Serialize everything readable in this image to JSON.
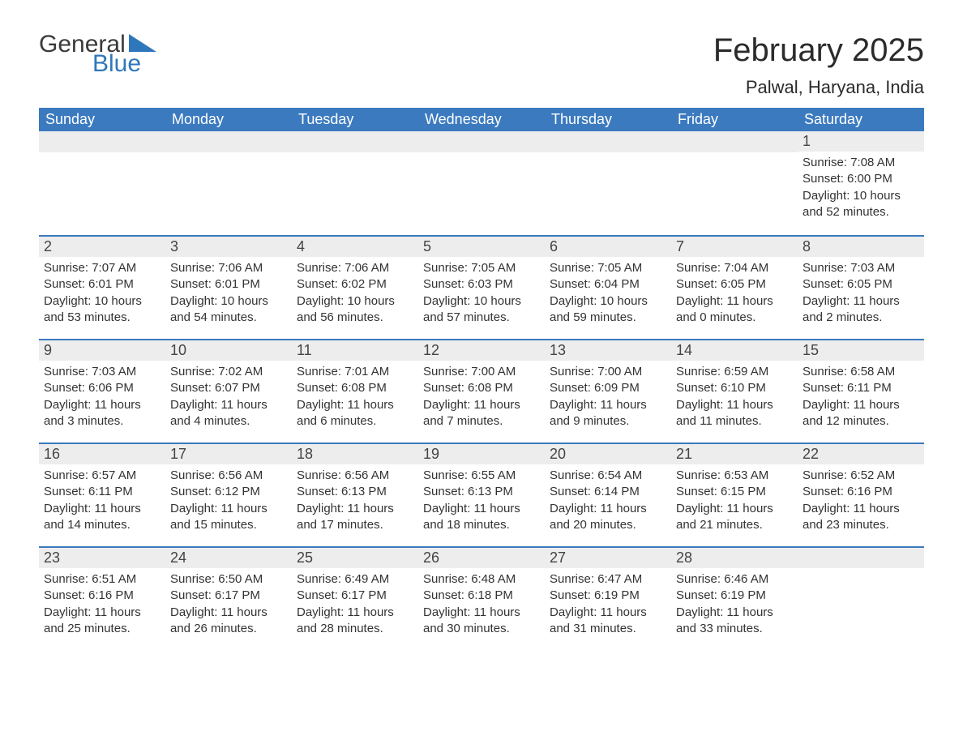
{
  "brand": {
    "word1": "General",
    "word2": "Blue",
    "color_text": "#3a3a3a",
    "color_blue": "#2f77bb"
  },
  "title": "February 2025",
  "location": "Palwal, Haryana, India",
  "colors": {
    "header_bg": "#3b7abf",
    "header_text": "#ffffff",
    "daybar_bg": "#ededed",
    "daybar_border": "#3b7abf",
    "body_text": "#333333",
    "page_bg": "#ffffff"
  },
  "weekdays": [
    "Sunday",
    "Monday",
    "Tuesday",
    "Wednesday",
    "Thursday",
    "Friday",
    "Saturday"
  ],
  "layout": {
    "columns": 7,
    "rows": 5,
    "first_weekday_index": 6
  },
  "days": [
    {
      "n": 1,
      "sunrise": "7:08 AM",
      "sunset": "6:00 PM",
      "daylight": "10 hours and 52 minutes."
    },
    {
      "n": 2,
      "sunrise": "7:07 AM",
      "sunset": "6:01 PM",
      "daylight": "10 hours and 53 minutes."
    },
    {
      "n": 3,
      "sunrise": "7:06 AM",
      "sunset": "6:01 PM",
      "daylight": "10 hours and 54 minutes."
    },
    {
      "n": 4,
      "sunrise": "7:06 AM",
      "sunset": "6:02 PM",
      "daylight": "10 hours and 56 minutes."
    },
    {
      "n": 5,
      "sunrise": "7:05 AM",
      "sunset": "6:03 PM",
      "daylight": "10 hours and 57 minutes."
    },
    {
      "n": 6,
      "sunrise": "7:05 AM",
      "sunset": "6:04 PM",
      "daylight": "10 hours and 59 minutes."
    },
    {
      "n": 7,
      "sunrise": "7:04 AM",
      "sunset": "6:05 PM",
      "daylight": "11 hours and 0 minutes."
    },
    {
      "n": 8,
      "sunrise": "7:03 AM",
      "sunset": "6:05 PM",
      "daylight": "11 hours and 2 minutes."
    },
    {
      "n": 9,
      "sunrise": "7:03 AM",
      "sunset": "6:06 PM",
      "daylight": "11 hours and 3 minutes."
    },
    {
      "n": 10,
      "sunrise": "7:02 AM",
      "sunset": "6:07 PM",
      "daylight": "11 hours and 4 minutes."
    },
    {
      "n": 11,
      "sunrise": "7:01 AM",
      "sunset": "6:08 PM",
      "daylight": "11 hours and 6 minutes."
    },
    {
      "n": 12,
      "sunrise": "7:00 AM",
      "sunset": "6:08 PM",
      "daylight": "11 hours and 7 minutes."
    },
    {
      "n": 13,
      "sunrise": "7:00 AM",
      "sunset": "6:09 PM",
      "daylight": "11 hours and 9 minutes."
    },
    {
      "n": 14,
      "sunrise": "6:59 AM",
      "sunset": "6:10 PM",
      "daylight": "11 hours and 11 minutes."
    },
    {
      "n": 15,
      "sunrise": "6:58 AM",
      "sunset": "6:11 PM",
      "daylight": "11 hours and 12 minutes."
    },
    {
      "n": 16,
      "sunrise": "6:57 AM",
      "sunset": "6:11 PM",
      "daylight": "11 hours and 14 minutes."
    },
    {
      "n": 17,
      "sunrise": "6:56 AM",
      "sunset": "6:12 PM",
      "daylight": "11 hours and 15 minutes."
    },
    {
      "n": 18,
      "sunrise": "6:56 AM",
      "sunset": "6:13 PM",
      "daylight": "11 hours and 17 minutes."
    },
    {
      "n": 19,
      "sunrise": "6:55 AM",
      "sunset": "6:13 PM",
      "daylight": "11 hours and 18 minutes."
    },
    {
      "n": 20,
      "sunrise": "6:54 AM",
      "sunset": "6:14 PM",
      "daylight": "11 hours and 20 minutes."
    },
    {
      "n": 21,
      "sunrise": "6:53 AM",
      "sunset": "6:15 PM",
      "daylight": "11 hours and 21 minutes."
    },
    {
      "n": 22,
      "sunrise": "6:52 AM",
      "sunset": "6:16 PM",
      "daylight": "11 hours and 23 minutes."
    },
    {
      "n": 23,
      "sunrise": "6:51 AM",
      "sunset": "6:16 PM",
      "daylight": "11 hours and 25 minutes."
    },
    {
      "n": 24,
      "sunrise": "6:50 AM",
      "sunset": "6:17 PM",
      "daylight": "11 hours and 26 minutes."
    },
    {
      "n": 25,
      "sunrise": "6:49 AM",
      "sunset": "6:17 PM",
      "daylight": "11 hours and 28 minutes."
    },
    {
      "n": 26,
      "sunrise": "6:48 AM",
      "sunset": "6:18 PM",
      "daylight": "11 hours and 30 minutes."
    },
    {
      "n": 27,
      "sunrise": "6:47 AM",
      "sunset": "6:19 PM",
      "daylight": "11 hours and 31 minutes."
    },
    {
      "n": 28,
      "sunrise": "6:46 AM",
      "sunset": "6:19 PM",
      "daylight": "11 hours and 33 minutes."
    }
  ],
  "labels": {
    "sunrise": "Sunrise:",
    "sunset": "Sunset:",
    "daylight": "Daylight:"
  },
  "typography": {
    "title_fontsize": 40,
    "location_fontsize": 22,
    "header_fontsize": 18,
    "cell_fontsize": 15
  }
}
